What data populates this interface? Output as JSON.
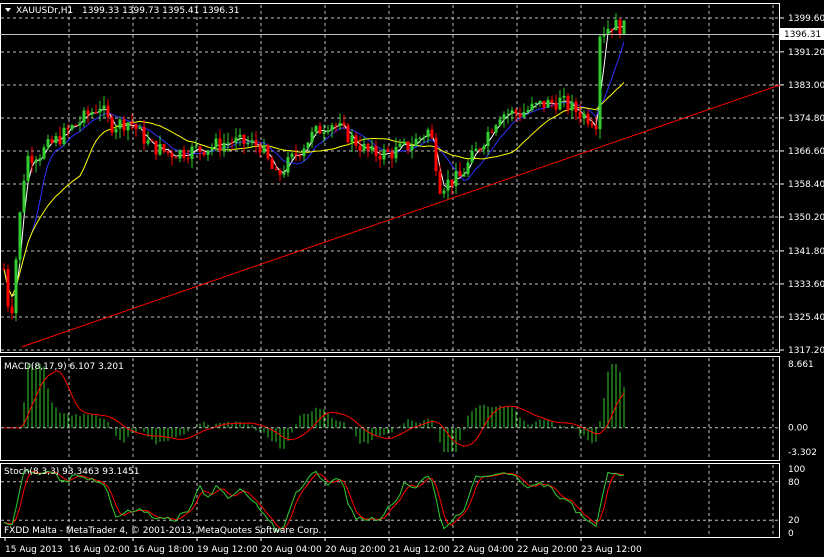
{
  "header": {
    "symbol": "XAUUSDr,H1",
    "ohlc": "1399.33 1399.73 1395.41 1396.31"
  },
  "price_panel": {
    "current_price_label": "1396.31",
    "y_ticks": [
      "1399.60",
      "1391.20",
      "1383.00",
      "1374.80",
      "1366.60",
      "1358.40",
      "1350.20",
      "1341.80",
      "1333.60",
      "1325.40",
      "1317.20"
    ]
  },
  "macd_panel": {
    "label": "MACD(8,17,9) 6.107 3.201",
    "y_ticks": [
      "8.661",
      "0.00",
      "-3.302"
    ]
  },
  "stoch_panel": {
    "label": "Stoch(8,3,3) 93.3463 93.1451",
    "y_ticks": [
      "100",
      "80",
      "20",
      "0"
    ],
    "watermark": "FXDD Malta - MetaTrader 4, © 2001-2013, MetaQuotes Software Corp."
  },
  "x_ticks": [
    "15 Aug 2013",
    "16 Aug 02:00",
    "16 Aug 18:00",
    "19 Aug 12:00",
    "20 Aug 04:00",
    "20 Aug 20:00",
    "21 Aug 12:00",
    "22 Aug 04:00",
    "22 Aug 20:00",
    "23 Aug 12:00"
  ],
  "colors": {
    "background": "#000000",
    "bull_candle": "#32cd32",
    "bear_candle": "#ff0000",
    "grid": "#c0c0c0",
    "trendline": "#ff0000",
    "ma_fast": "#ffffff",
    "ma_mid": "#3030ff",
    "ma_slow": "#ffff00",
    "macd_hist": "#32cd32",
    "macd_signal": "#ff0000",
    "stoch_main": "#32cd32",
    "stoch_signal": "#ff0000"
  },
  "chart_data": {
    "type": "candlestick",
    "title": "XAUUSDr,H1",
    "ylim": [
      1317.2,
      1399.6
    ],
    "trendline": [
      {
        "x": "15 Aug 2013",
        "y": 1318
      },
      {
        "x": "23 Aug 20:00",
        "y": 1383
      }
    ],
    "macd": {
      "fast": 8,
      "slow": 17,
      "signal": 9,
      "last_main": 6.107,
      "last_signal": 3.201,
      "ylim": [
        -3.302,
        8.661
      ]
    },
    "stochastic": {
      "k": 8,
      "d": 3,
      "slowing": 3,
      "last_main": 93.3463,
      "last_signal": 93.1451,
      "levels": [
        20,
        80
      ]
    }
  }
}
